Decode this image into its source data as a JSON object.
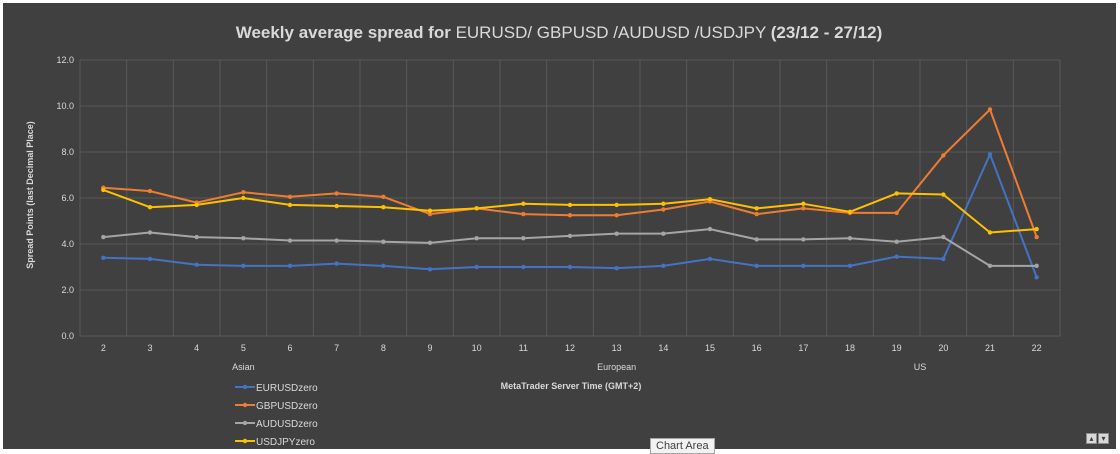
{
  "chart_data": {
    "type": "line",
    "title_parts": [
      {
        "text": "Weekly average spread for ",
        "bold": true
      },
      {
        "text": "EURUSD/ GBPUSD /AUDUSD /USDJPY ",
        "bold": false
      },
      {
        "text": "(23/12 - 27/12)",
        "bold": true
      }
    ],
    "xlabel": "MetaTrader Server Time (GMT+2)",
    "ylabel": "Spread Points  (last Decimal Place)",
    "ylim": [
      0,
      12
    ],
    "yticks": [
      "0.0",
      "2.0",
      "4.0",
      "6.0",
      "8.0",
      "10.0",
      "12.0"
    ],
    "x": [
      "2",
      "3",
      "4",
      "5",
      "6",
      "7",
      "8",
      "9",
      "10",
      "11",
      "12",
      "13",
      "14",
      "15",
      "16",
      "17",
      "18",
      "19",
      "20",
      "21",
      "22"
    ],
    "sessions": [
      {
        "label": "Asian",
        "at": "5"
      },
      {
        "label": "European",
        "at": "13"
      },
      {
        "label": "US",
        "at": "19.5"
      }
    ],
    "grid": true,
    "legend_position": "bottom-left",
    "series": [
      {
        "name": "EURUSDzero",
        "color": "#4472c4",
        "values": [
          3.4,
          3.35,
          3.1,
          3.05,
          3.05,
          3.15,
          3.05,
          2.9,
          3.0,
          3.0,
          3.0,
          2.95,
          3.05,
          3.35,
          3.05,
          3.05,
          3.05,
          3.45,
          3.35,
          7.9,
          2.55
        ]
      },
      {
        "name": "GBPUSDzero",
        "color": "#ed7d31",
        "values": [
          6.45,
          6.3,
          5.8,
          6.25,
          6.05,
          6.2,
          6.05,
          5.3,
          5.55,
          5.3,
          5.25,
          5.25,
          5.5,
          5.85,
          5.3,
          5.55,
          5.35,
          5.35,
          7.85,
          9.85,
          4.3
        ]
      },
      {
        "name": "AUDUSDzero",
        "color": "#a5a5a5",
        "values": [
          4.3,
          4.5,
          4.3,
          4.25,
          4.15,
          4.15,
          4.1,
          4.05,
          4.25,
          4.25,
          4.35,
          4.45,
          4.45,
          4.65,
          4.2,
          4.2,
          4.25,
          4.1,
          4.3,
          3.05,
          3.05
        ]
      },
      {
        "name": "USDJPYzero",
        "color": "#ffc000",
        "values": [
          6.35,
          5.6,
          5.7,
          6.0,
          5.7,
          5.65,
          5.6,
          5.45,
          5.55,
          5.75,
          5.7,
          5.7,
          5.75,
          5.95,
          5.55,
          5.75,
          5.4,
          6.2,
          6.15,
          4.5,
          4.65
        ]
      }
    ]
  },
  "ui": {
    "tooltip": "Chart Area",
    "btn_up": "▴",
    "btn_down": "▾"
  }
}
